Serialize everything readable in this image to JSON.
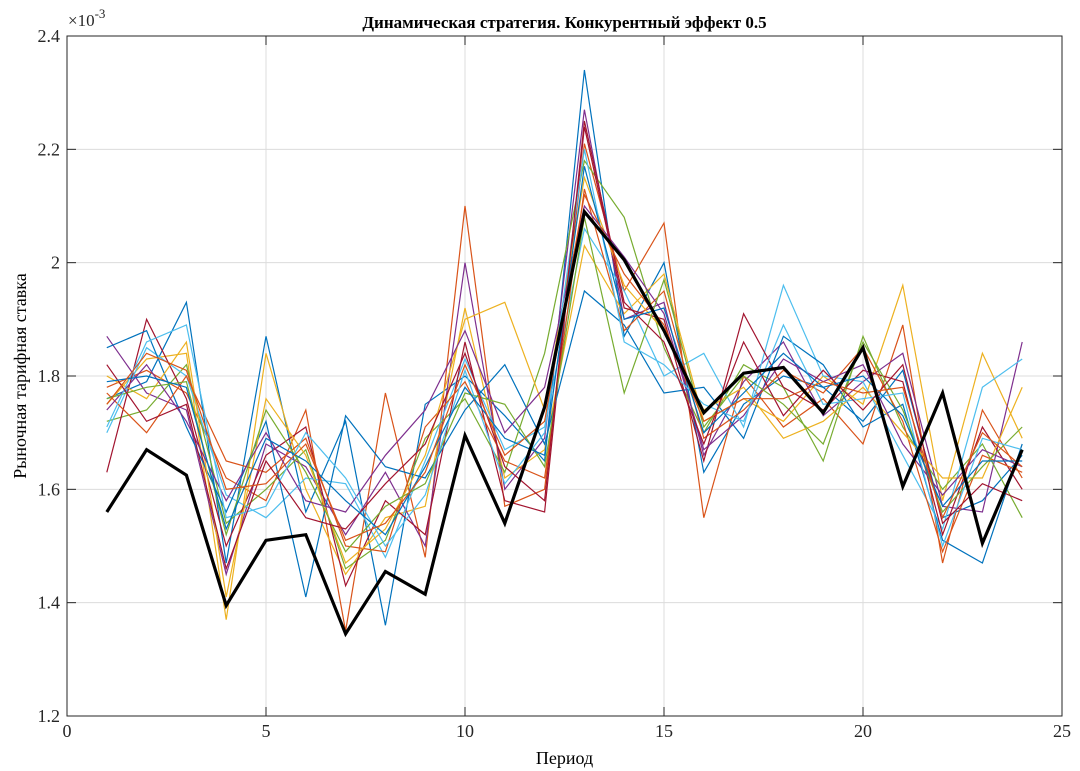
{
  "chart_data": {
    "type": "line",
    "title": "Динамическая стратегия. Конкурентный эффект 0.5",
    "xlabel": "Период",
    "ylabel": "Рыночная тарифная ставка",
    "exponent_label": "×10",
    "exponent_power": "-3",
    "xlim": [
      0,
      25
    ],
    "ylim": [
      1.2,
      2.4
    ],
    "x_ticks": [
      0,
      5,
      10,
      15,
      20,
      25
    ],
    "y_ticks": [
      1.2,
      1.4,
      1.6,
      1.8,
      2.0,
      2.2,
      2.4
    ],
    "x_tick_labels": [
      "0",
      "5",
      "10",
      "15",
      "20",
      "25"
    ],
    "y_tick_labels": [
      "1.2",
      "1.4",
      "1.6",
      "1.8",
      "2",
      "2.2",
      "2.4"
    ],
    "y_scale_factor": 0.001,
    "grid": true,
    "x": [
      1,
      2,
      3,
      4,
      5,
      6,
      7,
      8,
      9,
      10,
      11,
      12,
      13,
      14,
      15,
      16,
      17,
      18,
      19,
      20,
      21,
      22,
      23,
      24
    ],
    "highlight_series": {
      "color": "#000000",
      "values": [
        1.56,
        1.67,
        1.625,
        1.395,
        1.51,
        1.52,
        1.345,
        1.455,
        1.415,
        1.695,
        1.54,
        1.745,
        2.09,
        2.005,
        1.88,
        1.735,
        1.805,
        1.815,
        1.735,
        1.85,
        1.605,
        1.77,
        1.505,
        1.67
      ]
    },
    "series": [
      {
        "color": "#0072BD",
        "values": [
          1.76,
          1.79,
          1.93,
          1.47,
          1.87,
          1.56,
          1.72,
          1.36,
          1.75,
          1.8,
          1.73,
          1.65,
          2.34,
          1.87,
          2.0,
          1.63,
          1.75,
          1.8,
          1.78,
          1.72,
          1.81,
          1.55,
          1.58,
          1.66
        ]
      },
      {
        "color": "#D95319",
        "values": [
          1.78,
          1.81,
          1.77,
          1.62,
          1.58,
          1.74,
          1.35,
          1.77,
          1.48,
          2.1,
          1.57,
          1.6,
          2.21,
          1.95,
          2.07,
          1.55,
          1.8,
          1.71,
          1.76,
          1.68,
          1.89,
          1.47,
          1.74,
          1.62
        ]
      },
      {
        "color": "#EDB120",
        "values": [
          1.75,
          1.83,
          1.84,
          1.37,
          1.84,
          1.6,
          1.45,
          1.55,
          1.57,
          1.92,
          1.62,
          1.67,
          2.03,
          1.91,
          1.98,
          1.72,
          1.76,
          1.72,
          1.8,
          1.75,
          1.96,
          1.58,
          1.84,
          1.69
        ]
      },
      {
        "color": "#7E2F8E",
        "values": [
          1.87,
          1.77,
          1.74,
          1.45,
          1.68,
          1.64,
          1.52,
          1.63,
          1.5,
          2.0,
          1.6,
          1.69,
          2.27,
          1.9,
          1.93,
          1.66,
          1.79,
          1.86,
          1.73,
          1.79,
          1.84,
          1.57,
          1.56,
          1.86
        ]
      },
      {
        "color": "#77AC30",
        "values": [
          1.72,
          1.74,
          1.82,
          1.54,
          1.6,
          1.67,
          1.46,
          1.51,
          1.69,
          1.76,
          1.63,
          1.84,
          2.18,
          2.08,
          1.85,
          1.7,
          1.82,
          1.78,
          1.65,
          1.87,
          1.71,
          1.6,
          1.68,
          1.55
        ]
      },
      {
        "color": "#4DBEEE",
        "values": [
          1.7,
          1.85,
          1.8,
          1.59,
          1.55,
          1.62,
          1.61,
          1.48,
          1.65,
          1.83,
          1.67,
          1.71,
          2.06,
          1.95,
          1.8,
          1.84,
          1.71,
          1.96,
          1.8,
          1.79,
          1.66,
          1.53,
          1.78,
          1.83
        ]
      },
      {
        "color": "#A2142F",
        "values": [
          1.63,
          1.9,
          1.76,
          1.5,
          1.66,
          1.71,
          1.43,
          1.58,
          1.52,
          1.86,
          1.58,
          1.56,
          2.24,
          1.92,
          1.9,
          1.65,
          1.91,
          1.78,
          1.74,
          1.81,
          1.79,
          1.52,
          1.71,
          1.6
        ]
      },
      {
        "color": "#0072BD",
        "values": [
          1.85,
          1.88,
          1.71,
          1.56,
          1.72,
          1.41,
          1.73,
          1.64,
          1.62,
          1.74,
          1.82,
          1.68,
          1.95,
          1.89,
          1.77,
          1.78,
          1.69,
          1.87,
          1.82,
          1.71,
          1.75,
          1.51,
          1.47,
          1.68
        ]
      },
      {
        "color": "#D95319",
        "values": [
          1.77,
          1.7,
          1.8,
          1.65,
          1.63,
          1.69,
          1.5,
          1.49,
          1.71,
          1.79,
          1.65,
          1.62,
          2.13,
          1.88,
          1.95,
          1.69,
          1.74,
          1.81,
          1.77,
          1.85,
          1.72,
          1.49,
          1.66,
          1.63
        ]
      },
      {
        "color": "#EDB120",
        "values": [
          1.8,
          1.76,
          1.86,
          1.41,
          1.76,
          1.66,
          1.47,
          1.53,
          1.66,
          1.9,
          1.93,
          1.74,
          2.15,
          1.96,
          1.88,
          1.74,
          1.78,
          1.69,
          1.72,
          1.78,
          1.7,
          1.62,
          1.62,
          1.78
        ]
      },
      {
        "color": "#7E2F8E",
        "values": [
          1.74,
          1.82,
          1.72,
          1.58,
          1.7,
          1.58,
          1.56,
          1.66,
          1.74,
          1.88,
          1.7,
          1.78,
          2.1,
          2.01,
          1.91,
          1.67,
          1.73,
          1.83,
          1.79,
          1.82,
          1.68,
          1.59,
          1.67,
          1.64
        ]
      },
      {
        "color": "#77AC30",
        "values": [
          1.76,
          1.78,
          1.79,
          1.52,
          1.74,
          1.63,
          1.49,
          1.57,
          1.61,
          1.77,
          1.75,
          1.64,
          2.08,
          1.77,
          1.97,
          1.71,
          1.8,
          1.75,
          1.68,
          1.86,
          1.74,
          1.56,
          1.64,
          1.71
        ]
      },
      {
        "color": "#4DBEEE",
        "values": [
          1.71,
          1.86,
          1.89,
          1.55,
          1.57,
          1.7,
          1.62,
          1.5,
          1.59,
          1.81,
          1.61,
          1.7,
          2.2,
          1.86,
          1.82,
          1.75,
          1.72,
          1.89,
          1.75,
          1.76,
          1.77,
          1.5,
          1.69,
          1.67
        ]
      },
      {
        "color": "#A2142F",
        "values": [
          1.82,
          1.72,
          1.75,
          1.46,
          1.65,
          1.55,
          1.53,
          1.61,
          1.68,
          1.84,
          1.64,
          1.58,
          2.25,
          1.93,
          1.86,
          1.68,
          1.86,
          1.73,
          1.81,
          1.74,
          1.82,
          1.54,
          1.61,
          1.58
        ]
      },
      {
        "color": "#0072BD",
        "values": [
          1.79,
          1.8,
          1.78,
          1.53,
          1.69,
          1.65,
          1.58,
          1.52,
          1.64,
          1.78,
          1.69,
          1.66,
          2.17,
          1.9,
          1.92,
          1.7,
          1.77,
          1.84,
          1.78,
          1.8,
          1.73,
          1.57,
          1.65,
          1.65
        ]
      },
      {
        "color": "#D95319",
        "values": [
          1.75,
          1.84,
          1.81,
          1.6,
          1.61,
          1.68,
          1.51,
          1.54,
          1.63,
          1.82,
          1.66,
          1.72,
          2.12,
          1.98,
          1.89,
          1.72,
          1.76,
          1.76,
          1.79,
          1.77,
          1.78,
          1.55,
          1.7,
          1.64
        ]
      }
    ]
  }
}
